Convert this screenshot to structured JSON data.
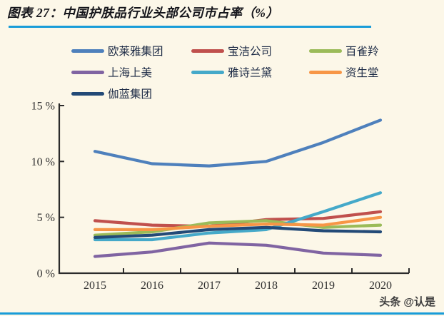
{
  "title": "图表 27：中国护肤品行业头部公司市占率（%）",
  "watermark": "头条 @认是",
  "accent_rule_color": "#199cd8",
  "chart_data": {
    "type": "line",
    "categories": [
      "2015",
      "2016",
      "2017",
      "2018",
      "2019",
      "2020"
    ],
    "series": [
      {
        "name": "欧莱雅集团",
        "color": "#4e80bc",
        "values": [
          10.9,
          9.8,
          9.6,
          10.0,
          11.7,
          13.7
        ]
      },
      {
        "name": "宝洁公司",
        "color": "#c0504d",
        "values": [
          4.7,
          4.3,
          4.2,
          4.8,
          4.9,
          5.5
        ]
      },
      {
        "name": "百雀羚",
        "color": "#9bbb59",
        "values": [
          3.4,
          3.7,
          4.5,
          4.7,
          4.1,
          4.3
        ]
      },
      {
        "name": "上海上美",
        "color": "#8064a2",
        "values": [
          1.5,
          1.9,
          2.7,
          2.5,
          1.8,
          1.6
        ]
      },
      {
        "name": "雅诗兰黛",
        "color": "#45a9c9",
        "values": [
          3.0,
          3.0,
          3.6,
          3.9,
          5.5,
          7.2
        ]
      },
      {
        "name": "资生堂",
        "color": "#f79646",
        "values": [
          3.9,
          3.9,
          4.2,
          4.4,
          4.3,
          5.0
        ]
      },
      {
        "name": "伽蓝集团",
        "color": "#234a77",
        "values": [
          3.2,
          3.4,
          3.9,
          4.1,
          3.8,
          3.7
        ]
      }
    ],
    "y_ticks": [
      0,
      5,
      10,
      15
    ],
    "y_tick_labels": [
      "0 %",
      "5 %",
      "10 %",
      "15 %"
    ],
    "ylim": [
      0,
      15
    ],
    "grid": false,
    "legend_position": "top-left",
    "axis_color": "#2b2b2b",
    "tick_label_color": "#303030"
  }
}
